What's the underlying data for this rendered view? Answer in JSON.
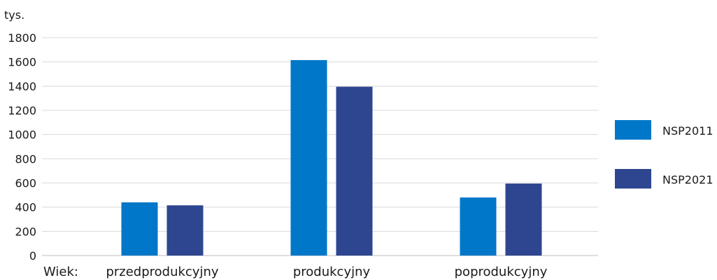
{
  "chart_data": {
    "type": "bar",
    "title": "",
    "unit_label": "tys.",
    "xlabel_prefix": "Wiek:",
    "categories": [
      "przedprodukcyjny",
      "produkcyjny",
      "poprodukcyjny"
    ],
    "series": [
      {
        "name": "NSP2011",
        "color": "#0077c8",
        "values": [
          440,
          1615,
          480
        ]
      },
      {
        "name": "NSP2021",
        "color": "#2e4690",
        "values": [
          415,
          1395,
          595
        ]
      }
    ],
    "ylim": [
      0,
      1800
    ],
    "yticks": [
      0,
      200,
      400,
      600,
      800,
      1000,
      1200,
      1400,
      1600,
      1800
    ],
    "grid": true,
    "legend_position": "right"
  }
}
